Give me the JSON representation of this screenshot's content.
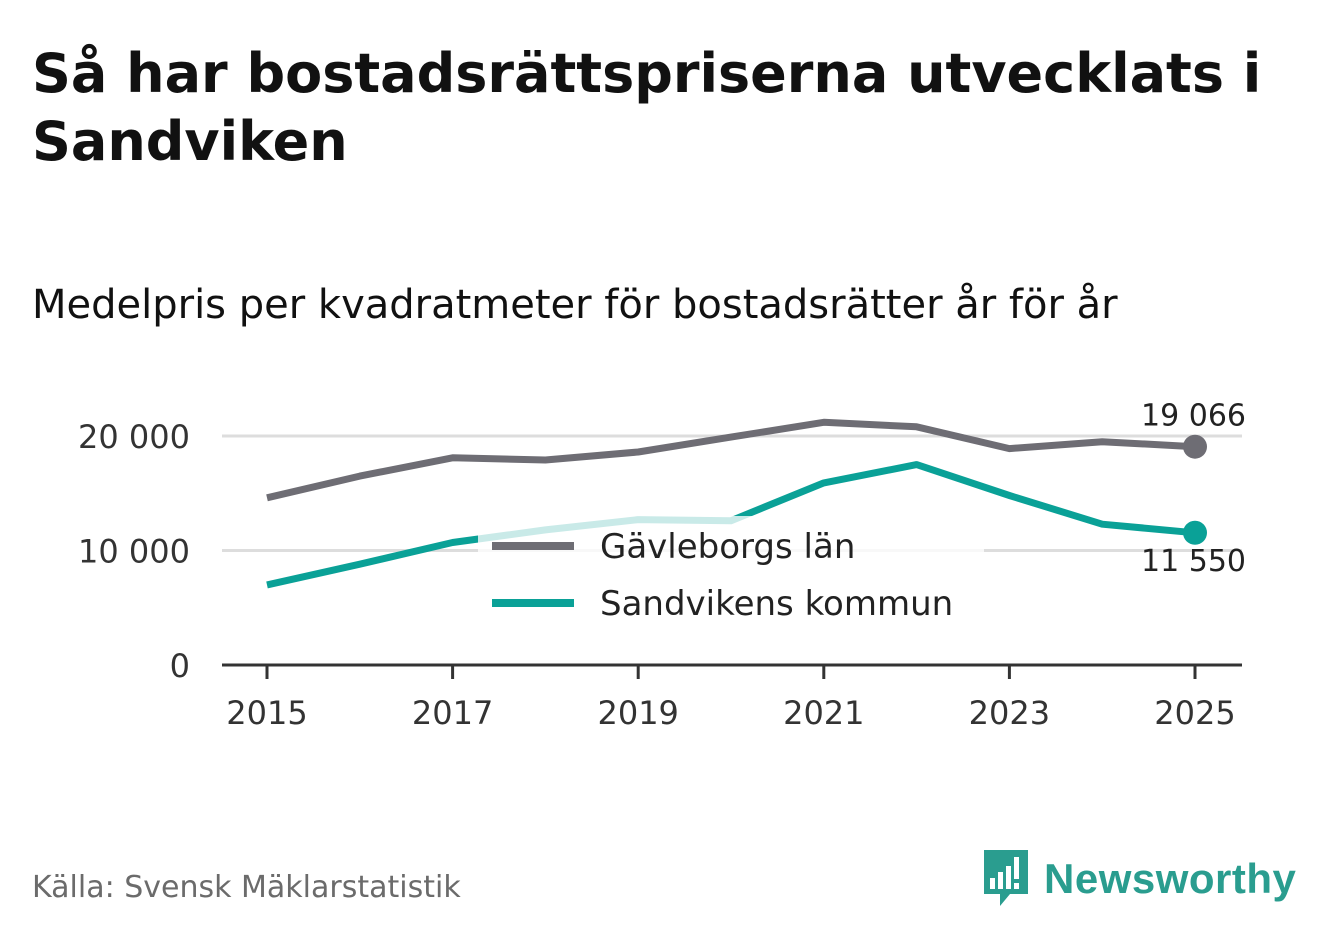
{
  "header": {
    "title": "Så har bostadsrättspriserna utvecklats i Sandviken",
    "subtitle": "Medelpris per kvadratmeter för bostadsrätter år för år"
  },
  "footer": {
    "source": "Källa: Svensk Mäklarstatistik",
    "brand": "Newsworthy"
  },
  "colors": {
    "gavleborg": "#6e6d74",
    "sandviken": "#0aa197",
    "grid": "#dddddd",
    "axis": "#333333",
    "brand": "#2a9d8f"
  },
  "chart_data": {
    "type": "line",
    "title": "Medelpris per kvadratmeter för bostadsrätter år för år",
    "xlabel": "",
    "ylabel": "",
    "x": [
      2015,
      2016,
      2017,
      2018,
      2019,
      2020,
      2021,
      2022,
      2023,
      2024,
      2025
    ],
    "ylim": [
      0,
      20000
    ],
    "yticks": [
      0,
      10000,
      20000
    ],
    "ytick_labels": [
      "0",
      "10 000",
      "20 000"
    ],
    "xticks": [
      2015,
      2017,
      2019,
      2021,
      2023,
      2025
    ],
    "xtick_labels": [
      "2015",
      "2017",
      "2019",
      "2021",
      "2023",
      "2025"
    ],
    "grid": true,
    "legend_position": "center",
    "series": [
      {
        "name": "Gävleborgs län",
        "color_key": "gavleborg",
        "values": [
          14600,
          16500,
          18100,
          17900,
          18600,
          19900,
          21200,
          20800,
          18900,
          19500,
          19066
        ],
        "end_label": "19 066"
      },
      {
        "name": "Sandvikens kommun",
        "color_key": "sandviken",
        "values": [
          7000,
          8800,
          10700,
          11800,
          12700,
          12600,
          15900,
          17500,
          14800,
          12300,
          11550
        ],
        "end_label": "11 550"
      }
    ]
  }
}
